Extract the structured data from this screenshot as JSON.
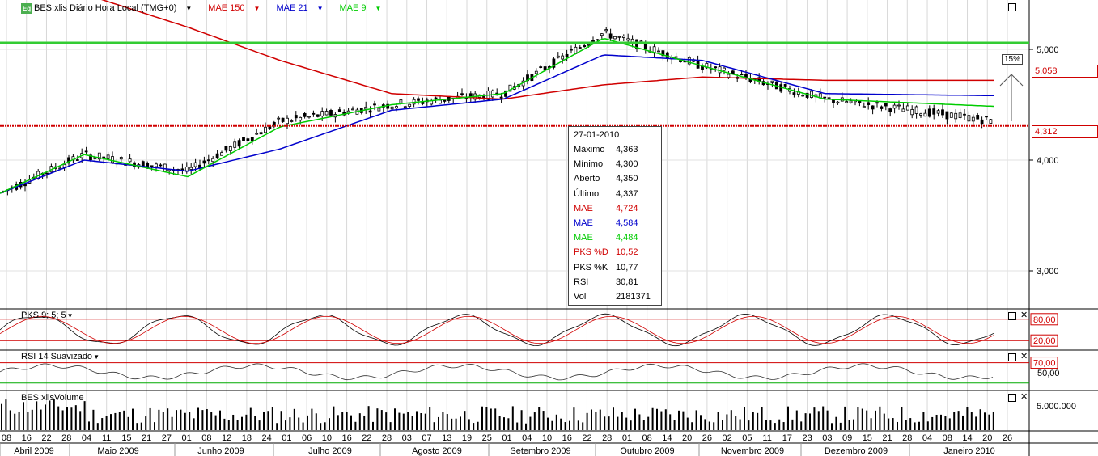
{
  "header": {
    "logo": "Eq",
    "instrument": "BES:xlis Diário Hora Local (TMG+0)",
    "mae150": "MAE 150",
    "mae21": "MAE 21",
    "mae9": "MAE 9"
  },
  "colors": {
    "mae150": "#d00000",
    "mae21": "#0000cc",
    "mae9": "#00cc00",
    "line_green": "#33cc33",
    "line_red": "#d00000"
  },
  "price_panel": {
    "y_ticks": [
      "5,000",
      "4,000",
      "3,000"
    ],
    "level_high": "5,058",
    "level_low": "4,312",
    "target_pct": "15%"
  },
  "tooltip": {
    "date": "27-01-2010",
    "rows": [
      {
        "k": "Máximo",
        "v": "4,363",
        "color": "#000"
      },
      {
        "k": "Mínimo",
        "v": "4,300",
        "color": "#000"
      },
      {
        "k": "Aberto",
        "v": "4,350",
        "color": "#000"
      },
      {
        "k": "Último",
        "v": "4,337",
        "color": "#000"
      },
      {
        "k": "MAE",
        "v": "4,724",
        "color": "#d00000"
      },
      {
        "k": "MAE",
        "v": "4,584",
        "color": "#0000cc"
      },
      {
        "k": "MAE",
        "v": "4,484",
        "color": "#00cc00"
      },
      {
        "k": "PKS %D",
        "v": "10,52",
        "color": "#d00000"
      },
      {
        "k": "PKS %K",
        "v": "10,77",
        "color": "#000"
      },
      {
        "k": "RSI",
        "v": "30,81",
        "color": "#000"
      },
      {
        "k": "Vol",
        "v": "2181371",
        "color": "#000"
      }
    ]
  },
  "pks_panel": {
    "label": "PKS 9; 5; 5",
    "levels": [
      "80,00",
      "20,00"
    ]
  },
  "rsi_panel": {
    "label": "RSI 14 Suavizado",
    "levels": [
      "70,00",
      "50,00"
    ]
  },
  "vol_panel": {
    "label": "BES:xlisVolume",
    "tick": "5.000.000"
  },
  "x_axis": {
    "days": [
      "08",
      "16",
      "22",
      "28",
      "04",
      "11",
      "15",
      "21",
      "27",
      "01",
      "08",
      "12",
      "18",
      "24",
      "01",
      "06",
      "10",
      "16",
      "22",
      "28",
      "03",
      "07",
      "13",
      "19",
      "25",
      "01",
      "04",
      "10",
      "16",
      "22",
      "28",
      "01",
      "08",
      "14",
      "20",
      "26",
      "02",
      "05",
      "11",
      "17",
      "23",
      "03",
      "09",
      "15",
      "21",
      "28",
      "04",
      "08",
      "14",
      "20",
      "26"
    ],
    "months": [
      "Abril 2009",
      "Maio 2009",
      "Junho 2009",
      "Julho 2009",
      "Agosto 2009",
      "Setembro 2009",
      "Outubro 2009",
      "Novembro 2009",
      "Dezembro 2009",
      "Janeiro 2010"
    ]
  },
  "chart_data": {
    "type": "line",
    "title": "BES:xlis Diário Hora Local (TMG+0)",
    "x": [
      "Abril 2009",
      "Maio 2009",
      "Junho 2009",
      "Julho 2009",
      "Agosto 2009",
      "Setembro 2009",
      "Outubro 2009",
      "Novembro 2009",
      "Dezembro 2009",
      "Janeiro 2010"
    ],
    "series": [
      {
        "name": "BES:xlis",
        "values": [
          3.7,
          4.05,
          3.9,
          4.35,
          4.5,
          4.6,
          5.15,
          4.85,
          4.55,
          4.34
        ]
      },
      {
        "name": "MAE 150",
        "values": [
          5.9,
          5.5,
          5.2,
          4.9,
          4.6,
          4.55,
          4.68,
          4.75,
          4.72,
          4.72
        ]
      },
      {
        "name": "MAE 21",
        "values": [
          3.7,
          4.0,
          3.9,
          4.1,
          4.45,
          4.55,
          4.95,
          4.9,
          4.6,
          4.58
        ]
      },
      {
        "name": "MAE 9",
        "values": [
          3.7,
          4.05,
          3.85,
          4.3,
          4.5,
          4.6,
          5.1,
          4.85,
          4.55,
          4.48
        ]
      }
    ],
    "ylim": [
      2.6,
      5.5
    ],
    "hlines": [
      5.058,
      4.312
    ]
  }
}
